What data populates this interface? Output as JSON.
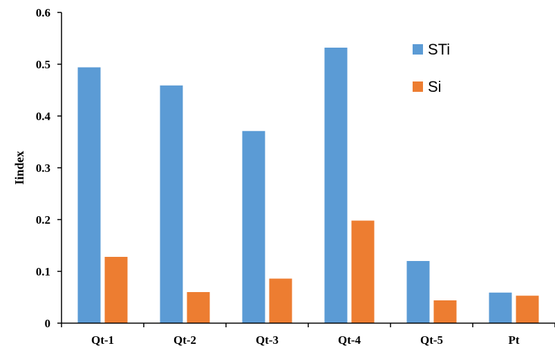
{
  "chart_data": {
    "type": "bar",
    "title": "",
    "xlabel": "",
    "ylabel": "Iindex",
    "ylim": [
      0,
      0.6
    ],
    "yticks": [
      "0",
      "0.1",
      "0.2",
      "0.3",
      "0.4",
      "0.5",
      "0.6"
    ],
    "grid": false,
    "legend_position": "top-right",
    "categories": [
      "Qt-1",
      "Qt-2",
      "Qt-3",
      "Qt-4",
      "Qt-5",
      "Pt"
    ],
    "series": [
      {
        "name": "STi",
        "color": "#5b9bd5",
        "values": [
          0.494,
          0.459,
          0.371,
          0.532,
          0.12,
          0.059
        ]
      },
      {
        "name": "Si",
        "color": "#ed7d31",
        "values": [
          0.128,
          0.06,
          0.086,
          0.198,
          0.044,
          0.053
        ]
      }
    ]
  }
}
